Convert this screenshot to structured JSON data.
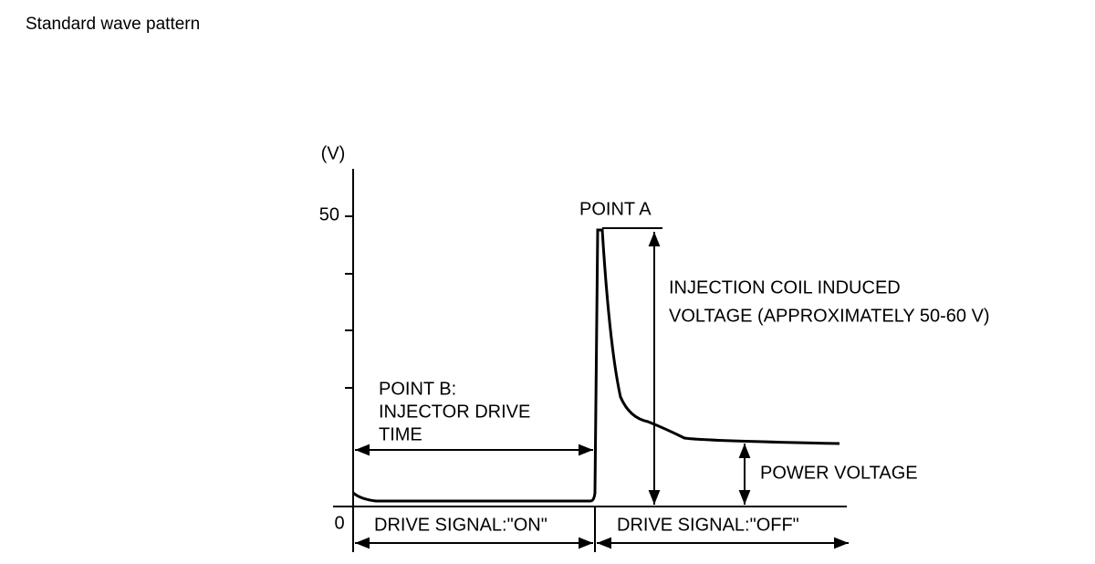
{
  "header": {
    "title": "Standard wave pattern"
  },
  "diagram": {
    "y_axis": {
      "unit": "(V)",
      "tick_top": "50",
      "tick_bottom": "0"
    },
    "labels": {
      "point_a": "POINT A",
      "induced_line_1": "INJECTION COIL INDUCED",
      "induced_line_2": "VOLTAGE (APPROXIMATELY 50-60 V)",
      "point_b_line_1": "POINT B:",
      "point_b_line_2": "INJECTOR DRIVE",
      "point_b_line_3": "TIME",
      "power_voltage": "POWER VOLTAGE",
      "signal_on": "DRIVE SIGNAL:\"ON\"",
      "signal_off": "DRIVE SIGNAL:\"OFF\""
    }
  }
}
